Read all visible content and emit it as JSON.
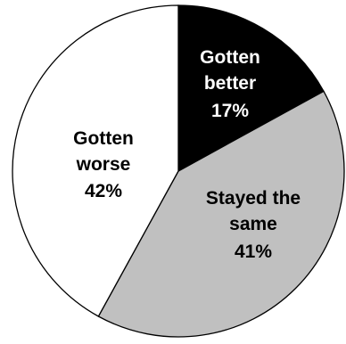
{
  "chart_data": {
    "type": "pie",
    "title": "",
    "slices": [
      {
        "line1": "Gotten",
        "line2": "better",
        "pct_label": "17%",
        "value": 17,
        "color": "#000000",
        "text_color": "#ffffff"
      },
      {
        "line1": "Stayed the",
        "line2": "same",
        "pct_label": "41%",
        "value": 41,
        "color": "#c0c0c0",
        "text_color": "#000000"
      },
      {
        "line1": "Gotten",
        "line2": "worse",
        "pct_label": "42%",
        "value": 42,
        "color": "#ffffff",
        "text_color": "#000000"
      }
    ]
  }
}
